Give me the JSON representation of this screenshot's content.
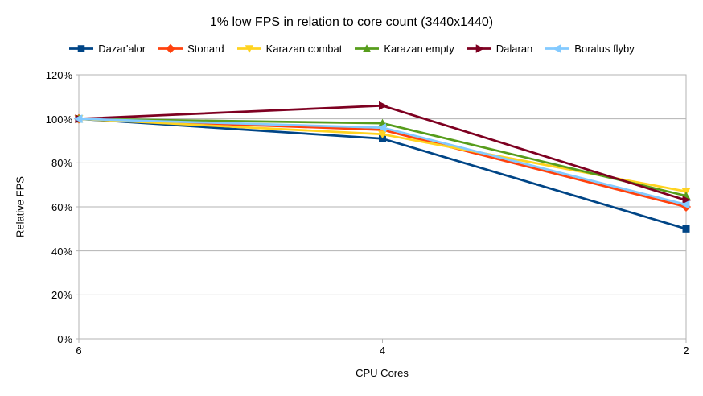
{
  "title": "1% low FPS in relation to core count (3440x1440)",
  "chart_data": {
    "type": "line",
    "title": "1% low FPS in relation to core count (3440x1440)",
    "xlabel": "CPU Cores",
    "ylabel": "Relative FPS",
    "x_categories": [
      "6",
      "4",
      "2"
    ],
    "y_ticks": [
      "0%",
      "20%",
      "40%",
      "60%",
      "80%",
      "100%",
      "120%"
    ],
    "ylim": [
      0,
      120
    ],
    "y_unit": "percent",
    "grid": "horizontal",
    "legend_position": "top",
    "colors": {
      "grid": "#b3b3b3",
      "text": "#000000",
      "background": "#ffffff"
    },
    "series": [
      {
        "name": "Dazar'alor",
        "color": "#004586",
        "marker": "square",
        "values": [
          100,
          91,
          50
        ]
      },
      {
        "name": "Stonard",
        "color": "#FF420E",
        "marker": "diamond",
        "values": [
          100,
          95,
          60
        ]
      },
      {
        "name": "Karazan combat",
        "color": "#FFD320",
        "marker": "triangle-down",
        "values": [
          100,
          93,
          67
        ]
      },
      {
        "name": "Karazan empty",
        "color": "#579D1C",
        "marker": "triangle-up",
        "values": [
          100,
          98,
          65
        ]
      },
      {
        "name": "Dalaran",
        "color": "#7E0021",
        "marker": "arrow-right",
        "values": [
          100,
          106,
          63
        ]
      },
      {
        "name": "Boralus flyby",
        "color": "#83CAFF",
        "marker": "arrow-left",
        "values": [
          100,
          96,
          61
        ]
      }
    ]
  }
}
